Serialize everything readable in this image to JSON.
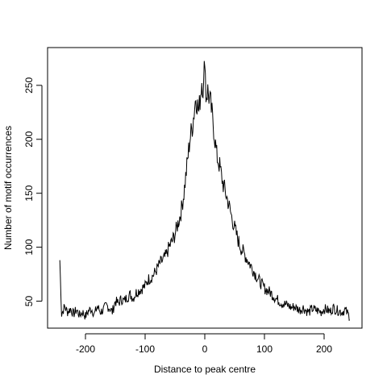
{
  "chart_data": {
    "type": "line",
    "title": "",
    "xlabel": "Distance to peak centre",
    "ylabel": "Number of motif occurrences",
    "xlim": [
      -250,
      250
    ],
    "ylim": [
      25,
      285
    ],
    "xticks": [
      -200,
      -100,
      0,
      100,
      200
    ],
    "yticks": [
      50,
      100,
      150,
      200,
      250
    ],
    "xtick_labels": [
      "-200",
      "-100",
      "0",
      "100",
      "200"
    ],
    "ytick_labels": [
      "50",
      "100",
      "150",
      "200",
      "250"
    ],
    "grid": false,
    "legend": "none",
    "line_color": "#000000",
    "series": [
      {
        "x": [
          -243,
          -240,
          -235,
          -230,
          -225,
          -220,
          -215,
          -210,
          -205,
          -200,
          -195,
          -190,
          -185,
          -180,
          -175,
          -170,
          -165,
          -160,
          -155,
          -150,
          -145,
          -140,
          -135,
          -130,
          -125,
          -120,
          -115,
          -110,
          -105,
          -100,
          -95,
          -90,
          -85,
          -80,
          -75,
          -70,
          -65,
          -60,
          -55,
          -50,
          -45,
          -40,
          -35,
          -30,
          -25,
          -20,
          -15,
          -10,
          -5,
          -2,
          0,
          2,
          5,
          10,
          15,
          20,
          25,
          30,
          35,
          40,
          45,
          50,
          55,
          60,
          65,
          70,
          75,
          80,
          85,
          90,
          95,
          100,
          105,
          110,
          115,
          120,
          125,
          130,
          135,
          140,
          145,
          150,
          155,
          160,
          165,
          170,
          175,
          180,
          185,
          190,
          195,
          200,
          205,
          210,
          215,
          220,
          225,
          230,
          235,
          240,
          243
        ],
        "values": [
          88,
          38,
          45,
          40,
          43,
          38,
          42,
          37,
          40,
          36,
          41,
          43,
          38,
          45,
          40,
          42,
          46,
          44,
          40,
          50,
          48,
          52,
          50,
          54,
          56,
          53,
          58,
          60,
          62,
          64,
          70,
          72,
          75,
          80,
          85,
          88,
          92,
          100,
          105,
          112,
          122,
          132,
          150,
          175,
          200,
          215,
          240,
          225,
          255,
          245,
          281,
          240,
          245,
          232,
          210,
          185,
          175,
          160,
          150,
          140,
          128,
          118,
          108,
          100,
          95,
          90,
          85,
          80,
          75,
          70,
          66,
          62,
          60,
          58,
          55,
          52,
          50,
          48,
          47,
          46,
          44,
          45,
          43,
          42,
          44,
          41,
          40,
          43,
          42,
          41,
          40,
          43,
          42,
          40,
          44,
          42,
          41,
          40,
          42,
          38,
          36
        ]
      }
    ]
  }
}
